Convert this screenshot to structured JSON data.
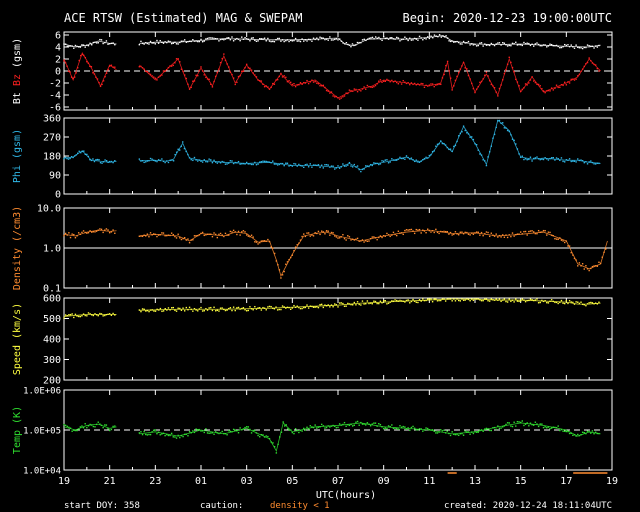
{
  "header": {
    "title": "ACE RTSW (Estimated) MAG & SWEPAM",
    "begin": "Begin: 2020-12-23 19:00:00UTC"
  },
  "footer": {
    "start_doy": "start DOY: 358",
    "caution": "caution:",
    "density_note": "density < 1",
    "created": "created: 2020-12-24 18:11:04UTC"
  },
  "colors": {
    "bt": "#ffffff",
    "bz": "#ff2020",
    "phi": "#30b8e8",
    "density": "#ff8c30",
    "speed": "#ffff40",
    "temp": "#30e030",
    "frame": "#ffffff",
    "caution": "#ff8c30"
  },
  "chart_data": {
    "type": "scatter",
    "xlabel": "UTC(hours)",
    "x_ticks": [
      "19",
      "21",
      "23",
      "01",
      "03",
      "05",
      "07",
      "09",
      "11",
      "13",
      "15",
      "17",
      "19"
    ],
    "x_range_hours": [
      0,
      24
    ],
    "panels": [
      {
        "id": "bfield",
        "ylabel_parts": [
          "Bt",
          "Bz",
          "(gsm)"
        ],
        "ylim": [
          -6.5,
          6.5
        ],
        "yticks": [
          6,
          4,
          2,
          0,
          -2,
          -4,
          -6
        ],
        "ytick_labels": [
          "6",
          "4",
          "2",
          "0",
          "-2",
          "-4",
          "-6"
        ],
        "dashed_ref": 0,
        "series": [
          {
            "name": "Bt",
            "color_key": "bt",
            "gaps": [
              [
                2.3,
                3.3
              ]
            ],
            "points": [
              [
                0,
                4.5
              ],
              [
                0.5,
                4.0
              ],
              [
                1,
                4.3
              ],
              [
                1.5,
                5.0
              ],
              [
                2,
                4.6
              ],
              [
                2.3,
                4.5
              ],
              [
                3.3,
                4.6
              ],
              [
                4,
                4.8
              ],
              [
                5,
                4.8
              ],
              [
                6,
                5.1
              ],
              [
                7,
                5.4
              ],
              [
                8,
                5.3
              ],
              [
                9,
                5.2
              ],
              [
                10,
                5.2
              ],
              [
                11,
                5.3
              ],
              [
                12,
                5.5
              ],
              [
                12.3,
                4.5
              ],
              [
                12.7,
                4.2
              ],
              [
                13.3,
                5.3
              ],
              [
                14,
                5.4
              ],
              [
                15,
                5.3
              ],
              [
                16,
                5.6
              ],
              [
                16.6,
                5.9
              ],
              [
                17,
                5.0
              ],
              [
                18,
                4.5
              ],
              [
                19,
                4.4
              ],
              [
                20,
                4.5
              ],
              [
                21,
                4.3
              ],
              [
                22,
                4.1
              ],
              [
                23,
                4.0
              ],
              [
                23.5,
                4.3
              ]
            ]
          },
          {
            "name": "Bz",
            "color_key": "bz",
            "gaps": [
              [
                2.3,
                3.3
              ]
            ],
            "points": [
              [
                0,
                2.0
              ],
              [
                0.4,
                -1.5
              ],
              [
                0.8,
                3.0
              ],
              [
                1.2,
                0.5
              ],
              [
                1.6,
                -2.5
              ],
              [
                2,
                1.0
              ],
              [
                2.3,
                0.2
              ],
              [
                3.3,
                1.0
              ],
              [
                4,
                -1.5
              ],
              [
                5,
                2.0
              ],
              [
                5.5,
                -3.0
              ],
              [
                6,
                0.5
              ],
              [
                6.5,
                -2.5
              ],
              [
                7,
                2.5
              ],
              [
                7.5,
                -2.0
              ],
              [
                8,
                1.0
              ],
              [
                8.5,
                -1.5
              ],
              [
                9,
                -3.0
              ],
              [
                9.5,
                -0.5
              ],
              [
                10,
                -2.5
              ],
              [
                11,
                -1.5
              ],
              [
                12,
                -4.5
              ],
              [
                12.5,
                -3.5
              ],
              [
                13,
                -3.0
              ],
              [
                13.5,
                -2.5
              ],
              [
                14,
                -1.5
              ],
              [
                15,
                -2.0
              ],
              [
                16,
                -2.5
              ],
              [
                16.5,
                -2.0
              ],
              [
                16.8,
                1.5
              ],
              [
                17,
                -3.0
              ],
              [
                17.5,
                1.5
              ],
              [
                18,
                -3.5
              ],
              [
                18.5,
                -0.5
              ],
              [
                19,
                -4.0
              ],
              [
                19.5,
                2.0
              ],
              [
                20,
                -3.5
              ],
              [
                20.5,
                -1.0
              ],
              [
                21,
                -3.5
              ],
              [
                22,
                -2.0
              ],
              [
                22.5,
                -1.0
              ],
              [
                23,
                2.0
              ],
              [
                23.5,
                0.0
              ]
            ]
          }
        ]
      },
      {
        "id": "phi",
        "ylabel_parts": [
          "Phi (gsm)"
        ],
        "ylim": [
          0,
          360
        ],
        "yticks": [
          360,
          270,
          180,
          90,
          0
        ],
        "ytick_labels": [
          "360",
          "270",
          "180",
          "90",
          "0"
        ],
        "series": [
          {
            "name": "Phi",
            "color_key": "phi",
            "gaps": [
              [
                2.3,
                3.3
              ]
            ],
            "points": [
              [
                0,
                170
              ],
              [
                0.4,
                175
              ],
              [
                0.8,
                205
              ],
              [
                1.2,
                160
              ],
              [
                1.6,
                155
              ],
              [
                2,
                150
              ],
              [
                2.3,
                155
              ],
              [
                3.3,
                158
              ],
              [
                4,
                160
              ],
              [
                4.5,
                155
              ],
              [
                4.8,
                165
              ],
              [
                5,
                205
              ],
              [
                5.2,
                240
              ],
              [
                5.5,
                170
              ],
              [
                6,
                160
              ],
              [
                7,
                150
              ],
              [
                8,
                145
              ],
              [
                9,
                150
              ],
              [
                10,
                135
              ],
              [
                11,
                135
              ],
              [
                12,
                125
              ],
              [
                12.5,
                145
              ],
              [
                13,
                115
              ],
              [
                13.5,
                140
              ],
              [
                14,
                150
              ],
              [
                15,
                175
              ],
              [
                15.5,
                150
              ],
              [
                16,
                175
              ],
              [
                16.5,
                250
              ],
              [
                17,
                200
              ],
              [
                17.5,
                320
              ],
              [
                18,
                240
              ],
              [
                18.5,
                140
              ],
              [
                19,
                350
              ],
              [
                19.5,
                300
              ],
              [
                20,
                175
              ],
              [
                20.5,
                165
              ],
              [
                21,
                170
              ],
              [
                22,
                160
              ],
              [
                22.5,
                160
              ],
              [
                23,
                150
              ],
              [
                23.5,
                145
              ]
            ]
          }
        ]
      },
      {
        "id": "density",
        "ylabel_parts": [
          "Density (/cm3)"
        ],
        "scale": "log",
        "ylim": [
          0.1,
          10
        ],
        "yticks": [
          10,
          1,
          0.1
        ],
        "ytick_labels": [
          "10.0",
          "1.0",
          "0.1"
        ],
        "solid_ref": 1,
        "series": [
          {
            "name": "Density",
            "color_key": "density",
            "gaps": [
              [
                2.3,
                3.3
              ]
            ],
            "points": [
              [
                0,
                2.2
              ],
              [
                0.5,
                2.0
              ],
              [
                1,
                2.5
              ],
              [
                1.5,
                2.8
              ],
              [
                2,
                2.6
              ],
              [
                2.3,
                2.7
              ],
              [
                3.3,
                2.0
              ],
              [
                4,
                2.2
              ],
              [
                5,
                2.0
              ],
              [
                5.5,
                1.5
              ],
              [
                6,
                2.3
              ],
              [
                7,
                2.0
              ],
              [
                7.5,
                2.5
              ],
              [
                8,
                2.3
              ],
              [
                8.5,
                1.4
              ],
              [
                9,
                1.5
              ],
              [
                9.3,
                0.5
              ],
              [
                9.5,
                0.2
              ],
              [
                10,
                0.7
              ],
              [
                10.5,
                2.0
              ],
              [
                11,
                2.3
              ],
              [
                11.5,
                2.5
              ],
              [
                12,
                2.0
              ],
              [
                13,
                1.5
              ],
              [
                14,
                2.0
              ],
              [
                15,
                2.5
              ],
              [
                16,
                2.8
              ],
              [
                17,
                2.3
              ],
              [
                18,
                2.4
              ],
              [
                19,
                2.0
              ],
              [
                20,
                2.2
              ],
              [
                21,
                2.5
              ],
              [
                22,
                1.5
              ],
              [
                22.5,
                0.4
              ],
              [
                23,
                0.3
              ],
              [
                23.5,
                0.4
              ],
              [
                23.8,
                1.5
              ]
            ]
          }
        ]
      },
      {
        "id": "speed",
        "ylabel_parts": [
          "Speed (km/s)"
        ],
        "ylim": [
          200,
          600
        ],
        "yticks": [
          600,
          500,
          400,
          300,
          200
        ],
        "ytick_labels": [
          "600",
          "500",
          "400",
          "300",
          "200"
        ],
        "series": [
          {
            "name": "Speed",
            "color_key": "speed",
            "gaps": [
              [
                2.3,
                3.3
              ]
            ],
            "points": [
              [
                0,
                510
              ],
              [
                1,
                520
              ],
              [
                2,
                520
              ],
              [
                2.3,
                520
              ],
              [
                3.3,
                540
              ],
              [
                5,
                545
              ],
              [
                7,
                545
              ],
              [
                9,
                550
              ],
              [
                11,
                560
              ],
              [
                12,
                565
              ],
              [
                13,
                575
              ],
              [
                14,
                580
              ],
              [
                15,
                585
              ],
              [
                16,
                590
              ],
              [
                17,
                595
              ],
              [
                18,
                595
              ],
              [
                19,
                590
              ],
              [
                20,
                590
              ],
              [
                21,
                585
              ],
              [
                22,
                580
              ],
              [
                22.5,
                570
              ],
              [
                23,
                570
              ],
              [
                23.5,
                575
              ]
            ]
          }
        ]
      },
      {
        "id": "temp",
        "ylabel_parts": [
          "Temp (K)"
        ],
        "scale": "log",
        "ylim": [
          10000,
          1000000
        ],
        "yticks": [
          1000000,
          100000,
          10000
        ],
        "ytick_labels": [
          "1.0E+06",
          "1.0E+05",
          "1.0E+04"
        ],
        "dashed_ref": 100000,
        "series": [
          {
            "name": "Temp",
            "color_key": "temp",
            "gaps": [
              [
                2.3,
                3.3
              ]
            ],
            "points": [
              [
                0,
                120000
              ],
              [
                0.5,
                100000
              ],
              [
                1,
                130000
              ],
              [
                1.5,
                140000
              ],
              [
                2,
                110000
              ],
              [
                2.3,
                120000
              ],
              [
                3.3,
                80000
              ],
              [
                4,
                90000
              ],
              [
                5,
                70000
              ],
              [
                6,
                100000
              ],
              [
                7,
                80000
              ],
              [
                8,
                110000
              ],
              [
                9,
                60000
              ],
              [
                9.3,
                30000
              ],
              [
                9.6,
                150000
              ],
              [
                10,
                90000
              ],
              [
                11,
                120000
              ],
              [
                12,
                130000
              ],
              [
                13,
                150000
              ],
              [
                14,
                120000
              ],
              [
                15,
                110000
              ],
              [
                16,
                100000
              ],
              [
                17,
                80000
              ],
              [
                18,
                90000
              ],
              [
                19,
                120000
              ],
              [
                20,
                150000
              ],
              [
                21,
                130000
              ],
              [
                22,
                100000
              ],
              [
                22.5,
                70000
              ],
              [
                23,
                90000
              ],
              [
                23.5,
                80000
              ]
            ]
          }
        ]
      }
    ]
  }
}
